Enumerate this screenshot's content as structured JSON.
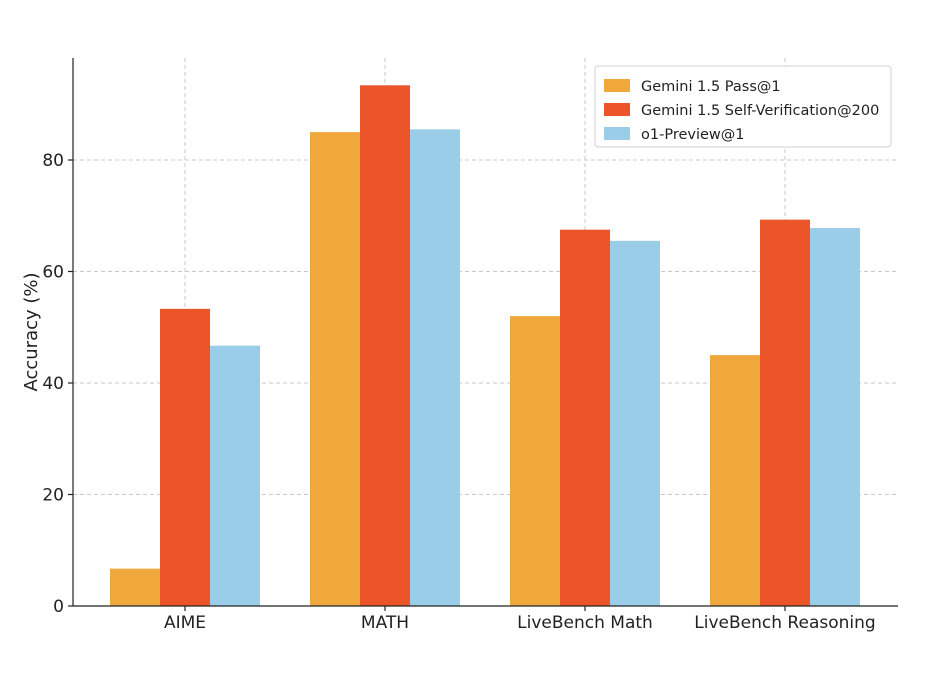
{
  "chart_data": {
    "type": "bar",
    "title": "",
    "xlabel": "",
    "ylabel": "Accuracy (%)",
    "ylim": [
      0,
      100
    ],
    "yticks": [
      0,
      20,
      40,
      60,
      80
    ],
    "grid": true,
    "legend_position": "top-right",
    "categories": [
      "AIME",
      "MATH",
      "LiveBench Math",
      "LiveBench Reasoning"
    ],
    "series": [
      {
        "name": "Gemini 1.5 Pass@1",
        "color": "#F0A83C",
        "values": [
          6.7,
          85.0,
          52.0,
          45.0
        ]
      },
      {
        "name": "Gemini 1.5 Self-Verification@200",
        "color": "#EC5429",
        "values": [
          53.3,
          93.4,
          67.5,
          69.3
        ]
      },
      {
        "name": "o1-Preview@1",
        "color": "#99CDE8",
        "values": [
          46.7,
          85.5,
          65.5,
          67.8
        ]
      }
    ]
  }
}
